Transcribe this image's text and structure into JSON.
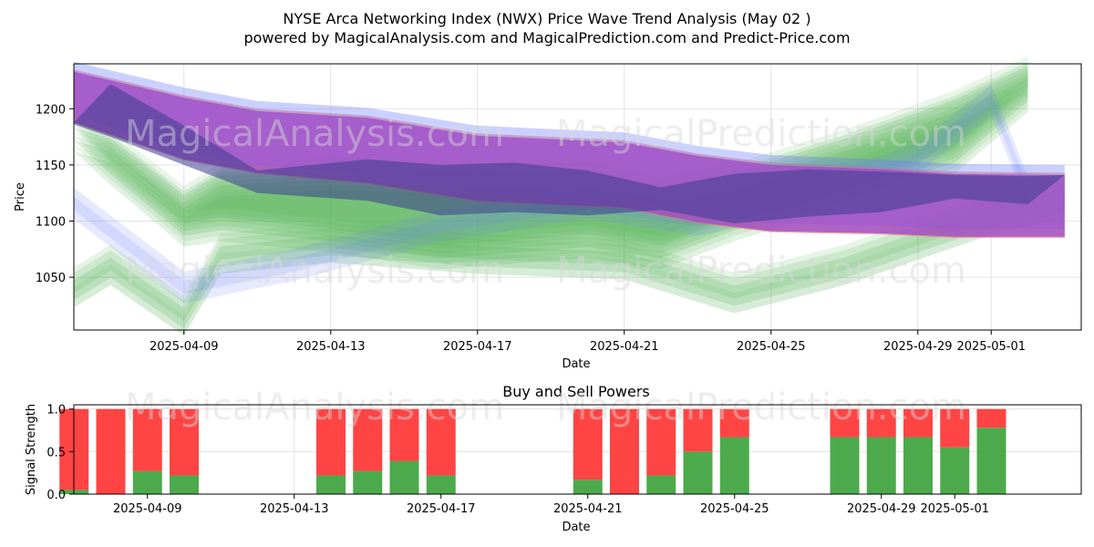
{
  "figure": {
    "title_line1": "NYSE Arca Networking Index (NWX) Price Wave Trend Analysis (May 02 )",
    "title_line2": "powered by MagicalAnalysis.com and MagicalPrediction.com and Predict-Price.com",
    "watermarks": [
      "MagicalAnalysis.com",
      "MagicalPrediction.com"
    ]
  },
  "chart_data": [
    {
      "type": "area",
      "name": "price-wave",
      "title": "",
      "xlabel": "Date",
      "ylabel": "Price",
      "x_start": "2025-04-06",
      "ylim": [
        1003,
        1240
      ],
      "xticks": [
        "2025-04-09",
        "2025-04-13",
        "2025-04-17",
        "2025-04-21",
        "2025-04-25",
        "2025-04-29",
        "2025-05-01"
      ],
      "yticks": [
        1050,
        1100,
        1150,
        1200
      ],
      "grid": true,
      "colors": {
        "purple": "#9b4dca",
        "navy": "#3d3d8f",
        "red": "#f07070",
        "blue": "#6b7bff",
        "green": "#4caf50"
      },
      "series": [
        {
          "style": "purple-red-band",
          "dates": [
            "2025-04-06",
            "2025-04-09",
            "2025-04-11",
            "2025-04-14",
            "2025-04-17",
            "2025-04-21",
            "2025-04-23",
            "2025-04-25",
            "2025-04-28",
            "2025-04-30",
            "2025-05-03"
          ],
          "upper": [
            1233,
            1210,
            1198,
            1192,
            1176,
            1170,
            1158,
            1150,
            1146,
            1142,
            1141
          ],
          "lower": [
            1188,
            1155,
            1143,
            1134,
            1118,
            1112,
            1099,
            1091,
            1089,
            1086,
            1086
          ]
        },
        {
          "style": "navy-band",
          "dates": [
            "2025-04-06",
            "2025-04-07",
            "2025-04-09",
            "2025-04-11",
            "2025-04-14",
            "2025-04-16",
            "2025-04-18",
            "2025-04-20",
            "2025-04-22",
            "2025-04-24",
            "2025-04-26",
            "2025-04-28",
            "2025-04-30",
            "2025-05-02",
            "2025-05-03"
          ],
          "upper": [
            1188,
            1222,
            1185,
            1145,
            1155,
            1150,
            1152,
            1145,
            1130,
            1142,
            1146,
            1144,
            1141,
            1140,
            1141
          ],
          "lower": [
            1186,
            1175,
            1150,
            1125,
            1118,
            1105,
            1108,
            1105,
            1110,
            1098,
            1104,
            1108,
            1120,
            1115,
            1141
          ]
        },
        {
          "style": "blue-light",
          "dates": [
            "2025-04-06",
            "2025-04-09",
            "2025-04-12",
            "2025-04-16",
            "2025-04-20",
            "2025-04-23",
            "2025-04-26",
            "2025-04-29",
            "2025-05-01",
            "2025-05-02"
          ],
          "mid": [
            1120,
            1045,
            1065,
            1100,
            1120,
            1105,
            1125,
            1160,
            1212,
            1130
          ]
        },
        {
          "style": "green-band",
          "dates": [
            "2025-04-06",
            "2025-04-07",
            "2025-04-09",
            "2025-04-10",
            "2025-04-13",
            "2025-04-16",
            "2025-04-20",
            "2025-04-22",
            "2025-04-24",
            "2025-04-27",
            "2025-04-30",
            "2025-05-02"
          ],
          "upper": [
            1180,
            1170,
            1120,
            1140,
            1145,
            1142,
            1140,
            1128,
            1140,
            1170,
            1205,
            1235
          ],
          "lower": [
            1180,
            1150,
            1095,
            1100,
            1090,
            1075,
            1085,
            1075,
            1100,
            1130,
            1160,
            1215
          ]
        },
        {
          "style": "green-low",
          "dates": [
            "2025-04-06",
            "2025-04-07",
            "2025-04-09",
            "2025-04-10",
            "2025-04-13",
            "2025-04-17",
            "2025-04-21",
            "2025-04-23",
            "2025-04-24",
            "2025-04-27",
            "2025-05-01",
            "2025-05-03"
          ],
          "mid": [
            1045,
            1065,
            1020,
            1075,
            1085,
            1075,
            1070,
            1050,
            1040,
            1065,
            1110,
            1125
          ]
        }
      ]
    },
    {
      "type": "bar",
      "name": "buy-sell-powers",
      "title": "Buy and Sell Powers",
      "xlabel": "Date",
      "ylabel": "Signal Strength",
      "ylim": [
        0,
        1.05
      ],
      "yticks": [
        0.0,
        0.5,
        1.0
      ],
      "xticks": [
        "2025-04-09",
        "2025-04-13",
        "2025-04-17",
        "2025-04-21",
        "2025-04-25",
        "2025-04-29",
        "2025-05-01"
      ],
      "grid": true,
      "colors": {
        "buy": "#4caa4c",
        "sell": "#ff4444"
      },
      "dates": [
        "2025-04-07",
        "2025-04-08",
        "2025-04-09",
        "2025-04-10",
        "2025-04-14",
        "2025-04-15",
        "2025-04-16",
        "2025-04-17",
        "2025-04-21",
        "2025-04-22",
        "2025-04-23",
        "2025-04-24",
        "2025-04-25",
        "2025-04-28",
        "2025-04-29",
        "2025-04-30",
        "2025-05-01",
        "2025-05-02"
      ],
      "series": [
        {
          "name": "Buy",
          "values": [
            0.05,
            0.0,
            0.27,
            0.22,
            0.22,
            0.27,
            0.39,
            0.22,
            0.17,
            0.0,
            0.22,
            0.5,
            0.67,
            0.67,
            0.67,
            0.67,
            0.55,
            0.78
          ]
        },
        {
          "name": "Sell",
          "values": [
            0.95,
            1.0,
            0.73,
            0.78,
            0.78,
            0.73,
            0.61,
            0.78,
            0.83,
            1.0,
            0.78,
            0.5,
            0.33,
            0.33,
            0.33,
            0.33,
            0.45,
            0.22
          ]
        }
      ]
    }
  ]
}
